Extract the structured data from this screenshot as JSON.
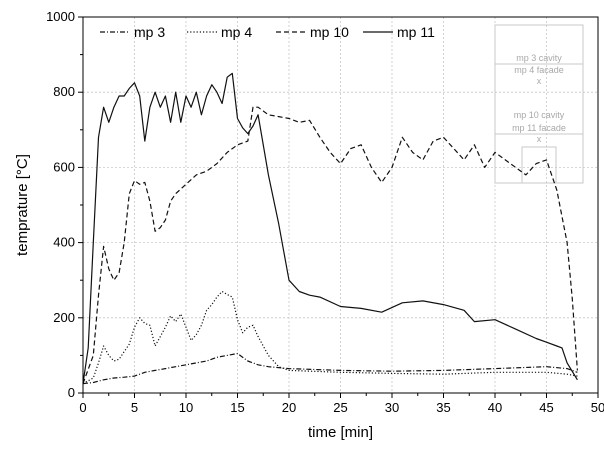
{
  "chart_data": {
    "type": "line",
    "xlabel": "time [min]",
    "ylabel": "temprature [°C]",
    "xlim": [
      0,
      50
    ],
    "ylim": [
      0,
      1000
    ],
    "xticks": [
      0,
      5,
      10,
      15,
      20,
      25,
      30,
      35,
      40,
      45,
      50
    ],
    "yticks": [
      0,
      200,
      400,
      600,
      800,
      1000
    ],
    "grid": true,
    "legend_position": "top-left",
    "series": [
      {
        "name": "mp 3",
        "dash": "dashdot",
        "points": [
          [
            0,
            25
          ],
          [
            1,
            28
          ],
          [
            2,
            35
          ],
          [
            3,
            40
          ],
          [
            4,
            42
          ],
          [
            5,
            45
          ],
          [
            6,
            55
          ],
          [
            7,
            60
          ],
          [
            8,
            65
          ],
          [
            9,
            70
          ],
          [
            10,
            75
          ],
          [
            11,
            80
          ],
          [
            12,
            85
          ],
          [
            13,
            95
          ],
          [
            14,
            100
          ],
          [
            15,
            105
          ],
          [
            16,
            85
          ],
          [
            17,
            75
          ],
          [
            18,
            70
          ],
          [
            20,
            65
          ],
          [
            25,
            60
          ],
          [
            30,
            58
          ],
          [
            35,
            60
          ],
          [
            40,
            65
          ],
          [
            45,
            70
          ],
          [
            47,
            65
          ],
          [
            48,
            55
          ]
        ]
      },
      {
        "name": "mp 4",
        "dash": "dotted",
        "points": [
          [
            0,
            25
          ],
          [
            1,
            40
          ],
          [
            1.5,
            80
          ],
          [
            2,
            125
          ],
          [
            2.5,
            100
          ],
          [
            3,
            85
          ],
          [
            3.5,
            90
          ],
          [
            4,
            110
          ],
          [
            4.5,
            130
          ],
          [
            5,
            175
          ],
          [
            5.5,
            200
          ],
          [
            6,
            185
          ],
          [
            6.5,
            180
          ],
          [
            7,
            125
          ],
          [
            7.5,
            150
          ],
          [
            8,
            175
          ],
          [
            8.5,
            205
          ],
          [
            9,
            190
          ],
          [
            9.5,
            210
          ],
          [
            10,
            175
          ],
          [
            10.5,
            140
          ],
          [
            11,
            155
          ],
          [
            11.5,
            180
          ],
          [
            12,
            220
          ],
          [
            12.5,
            235
          ],
          [
            13,
            255
          ],
          [
            13.5,
            270
          ],
          [
            14,
            262
          ],
          [
            14.5,
            255
          ],
          [
            15,
            195
          ],
          [
            15.5,
            160
          ],
          [
            16,
            175
          ],
          [
            16.5,
            180
          ],
          [
            17,
            150
          ],
          [
            18,
            100
          ],
          [
            19,
            70
          ],
          [
            20,
            60
          ],
          [
            25,
            55
          ],
          [
            30,
            52
          ],
          [
            35,
            50
          ],
          [
            40,
            55
          ],
          [
            45,
            55
          ],
          [
            47,
            50
          ],
          [
            48,
            45
          ]
        ]
      },
      {
        "name": "mp 10",
        "dash": "dashed",
        "points": [
          [
            0,
            25
          ],
          [
            1,
            100
          ],
          [
            1.5,
            260
          ],
          [
            2,
            390
          ],
          [
            2.5,
            330
          ],
          [
            3,
            300
          ],
          [
            3.5,
            320
          ],
          [
            4,
            400
          ],
          [
            4.5,
            530
          ],
          [
            5,
            565
          ],
          [
            5.5,
            555
          ],
          [
            6,
            560
          ],
          [
            6.5,
            510
          ],
          [
            7,
            430
          ],
          [
            7.5,
            440
          ],
          [
            8,
            460
          ],
          [
            8.5,
            510
          ],
          [
            9,
            530
          ],
          [
            10,
            555
          ],
          [
            11,
            580
          ],
          [
            12,
            590
          ],
          [
            13,
            610
          ],
          [
            14,
            640
          ],
          [
            15,
            660
          ],
          [
            16,
            670
          ],
          [
            16.5,
            760
          ],
          [
            17,
            760
          ],
          [
            18,
            740
          ],
          [
            19,
            735
          ],
          [
            20,
            730
          ],
          [
            21,
            720
          ],
          [
            22,
            725
          ],
          [
            23,
            680
          ],
          [
            24,
            640
          ],
          [
            25,
            610
          ],
          [
            26,
            650
          ],
          [
            27,
            660
          ],
          [
            28,
            600
          ],
          [
            29,
            560
          ],
          [
            30,
            600
          ],
          [
            31,
            680
          ],
          [
            32,
            640
          ],
          [
            33,
            620
          ],
          [
            34,
            670
          ],
          [
            35,
            680
          ],
          [
            36,
            650
          ],
          [
            37,
            620
          ],
          [
            38,
            660
          ],
          [
            39,
            600
          ],
          [
            40,
            640
          ],
          [
            41,
            620
          ],
          [
            42,
            600
          ],
          [
            43,
            580
          ],
          [
            44,
            610
          ],
          [
            45,
            620
          ],
          [
            46,
            540
          ],
          [
            47,
            400
          ],
          [
            47.5,
            250
          ],
          [
            48,
            60
          ]
        ]
      },
      {
        "name": "mp 11",
        "dash": "solid",
        "points": [
          [
            0,
            25
          ],
          [
            0.5,
            120
          ],
          [
            1,
            400
          ],
          [
            1.5,
            680
          ],
          [
            2,
            760
          ],
          [
            2.5,
            720
          ],
          [
            3,
            760
          ],
          [
            3.5,
            790
          ],
          [
            4,
            790
          ],
          [
            4.5,
            810
          ],
          [
            5,
            825
          ],
          [
            5.5,
            790
          ],
          [
            6,
            670
          ],
          [
            6.5,
            760
          ],
          [
            7,
            800
          ],
          [
            7.5,
            760
          ],
          [
            8,
            790
          ],
          [
            8.5,
            720
          ],
          [
            9,
            800
          ],
          [
            9.5,
            720
          ],
          [
            10,
            790
          ],
          [
            10.5,
            760
          ],
          [
            11,
            800
          ],
          [
            11.5,
            740
          ],
          [
            12,
            790
          ],
          [
            12.5,
            820
          ],
          [
            13,
            800
          ],
          [
            13.5,
            770
          ],
          [
            14,
            840
          ],
          [
            14.5,
            850
          ],
          [
            15,
            730
          ],
          [
            15.5,
            705
          ],
          [
            16,
            690
          ],
          [
            16.5,
            710
          ],
          [
            17,
            740
          ],
          [
            18,
            580
          ],
          [
            19,
            450
          ],
          [
            20,
            300
          ],
          [
            21,
            270
          ],
          [
            22,
            260
          ],
          [
            23,
            255
          ],
          [
            25,
            230
          ],
          [
            27,
            225
          ],
          [
            29,
            215
          ],
          [
            31,
            240
          ],
          [
            33,
            245
          ],
          [
            35,
            235
          ],
          [
            37,
            220
          ],
          [
            38,
            190
          ],
          [
            40,
            195
          ],
          [
            42,
            170
          ],
          [
            44,
            145
          ],
          [
            45,
            135
          ],
          [
            46,
            125
          ],
          [
            46.5,
            120
          ],
          [
            47,
            80
          ],
          [
            48,
            35
          ]
        ]
      }
    ],
    "inset_labels": [
      "mp 3 cavity",
      "mp 4 facade",
      "x",
      "mp 10 cavity",
      "mp 11 facade",
      "x"
    ]
  }
}
